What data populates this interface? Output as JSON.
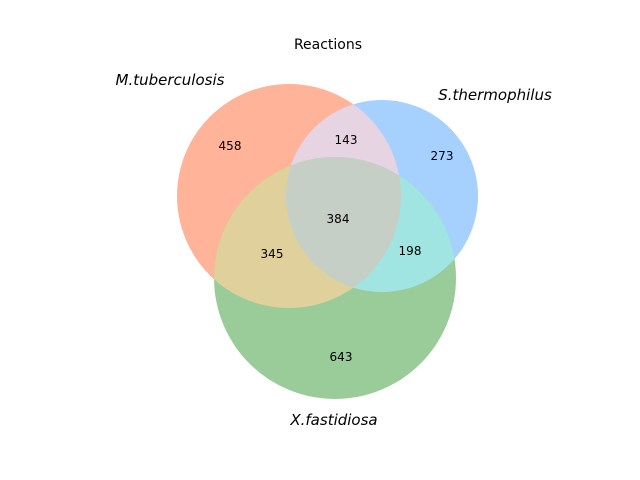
{
  "title": "Reactions",
  "sets": [
    {
      "name": "M.tuberculosis",
      "color": "#FFB399"
    },
    {
      "name": "S.thermophilus",
      "color": "#A6D1FF"
    },
    {
      "name": "X.fastidiosa",
      "color": "#99CC99"
    }
  ],
  "regions": {
    "m_only": "458",
    "s_only": "273",
    "ms": "143",
    "all": "384",
    "mx": "345",
    "sx": "198",
    "x_only": "643"
  },
  "overlap_colors": {
    "ms": "#E6D4E3",
    "mx": "#E0D19C",
    "sx": "#A1E5E2",
    "all": "#C5CFC5"
  }
}
